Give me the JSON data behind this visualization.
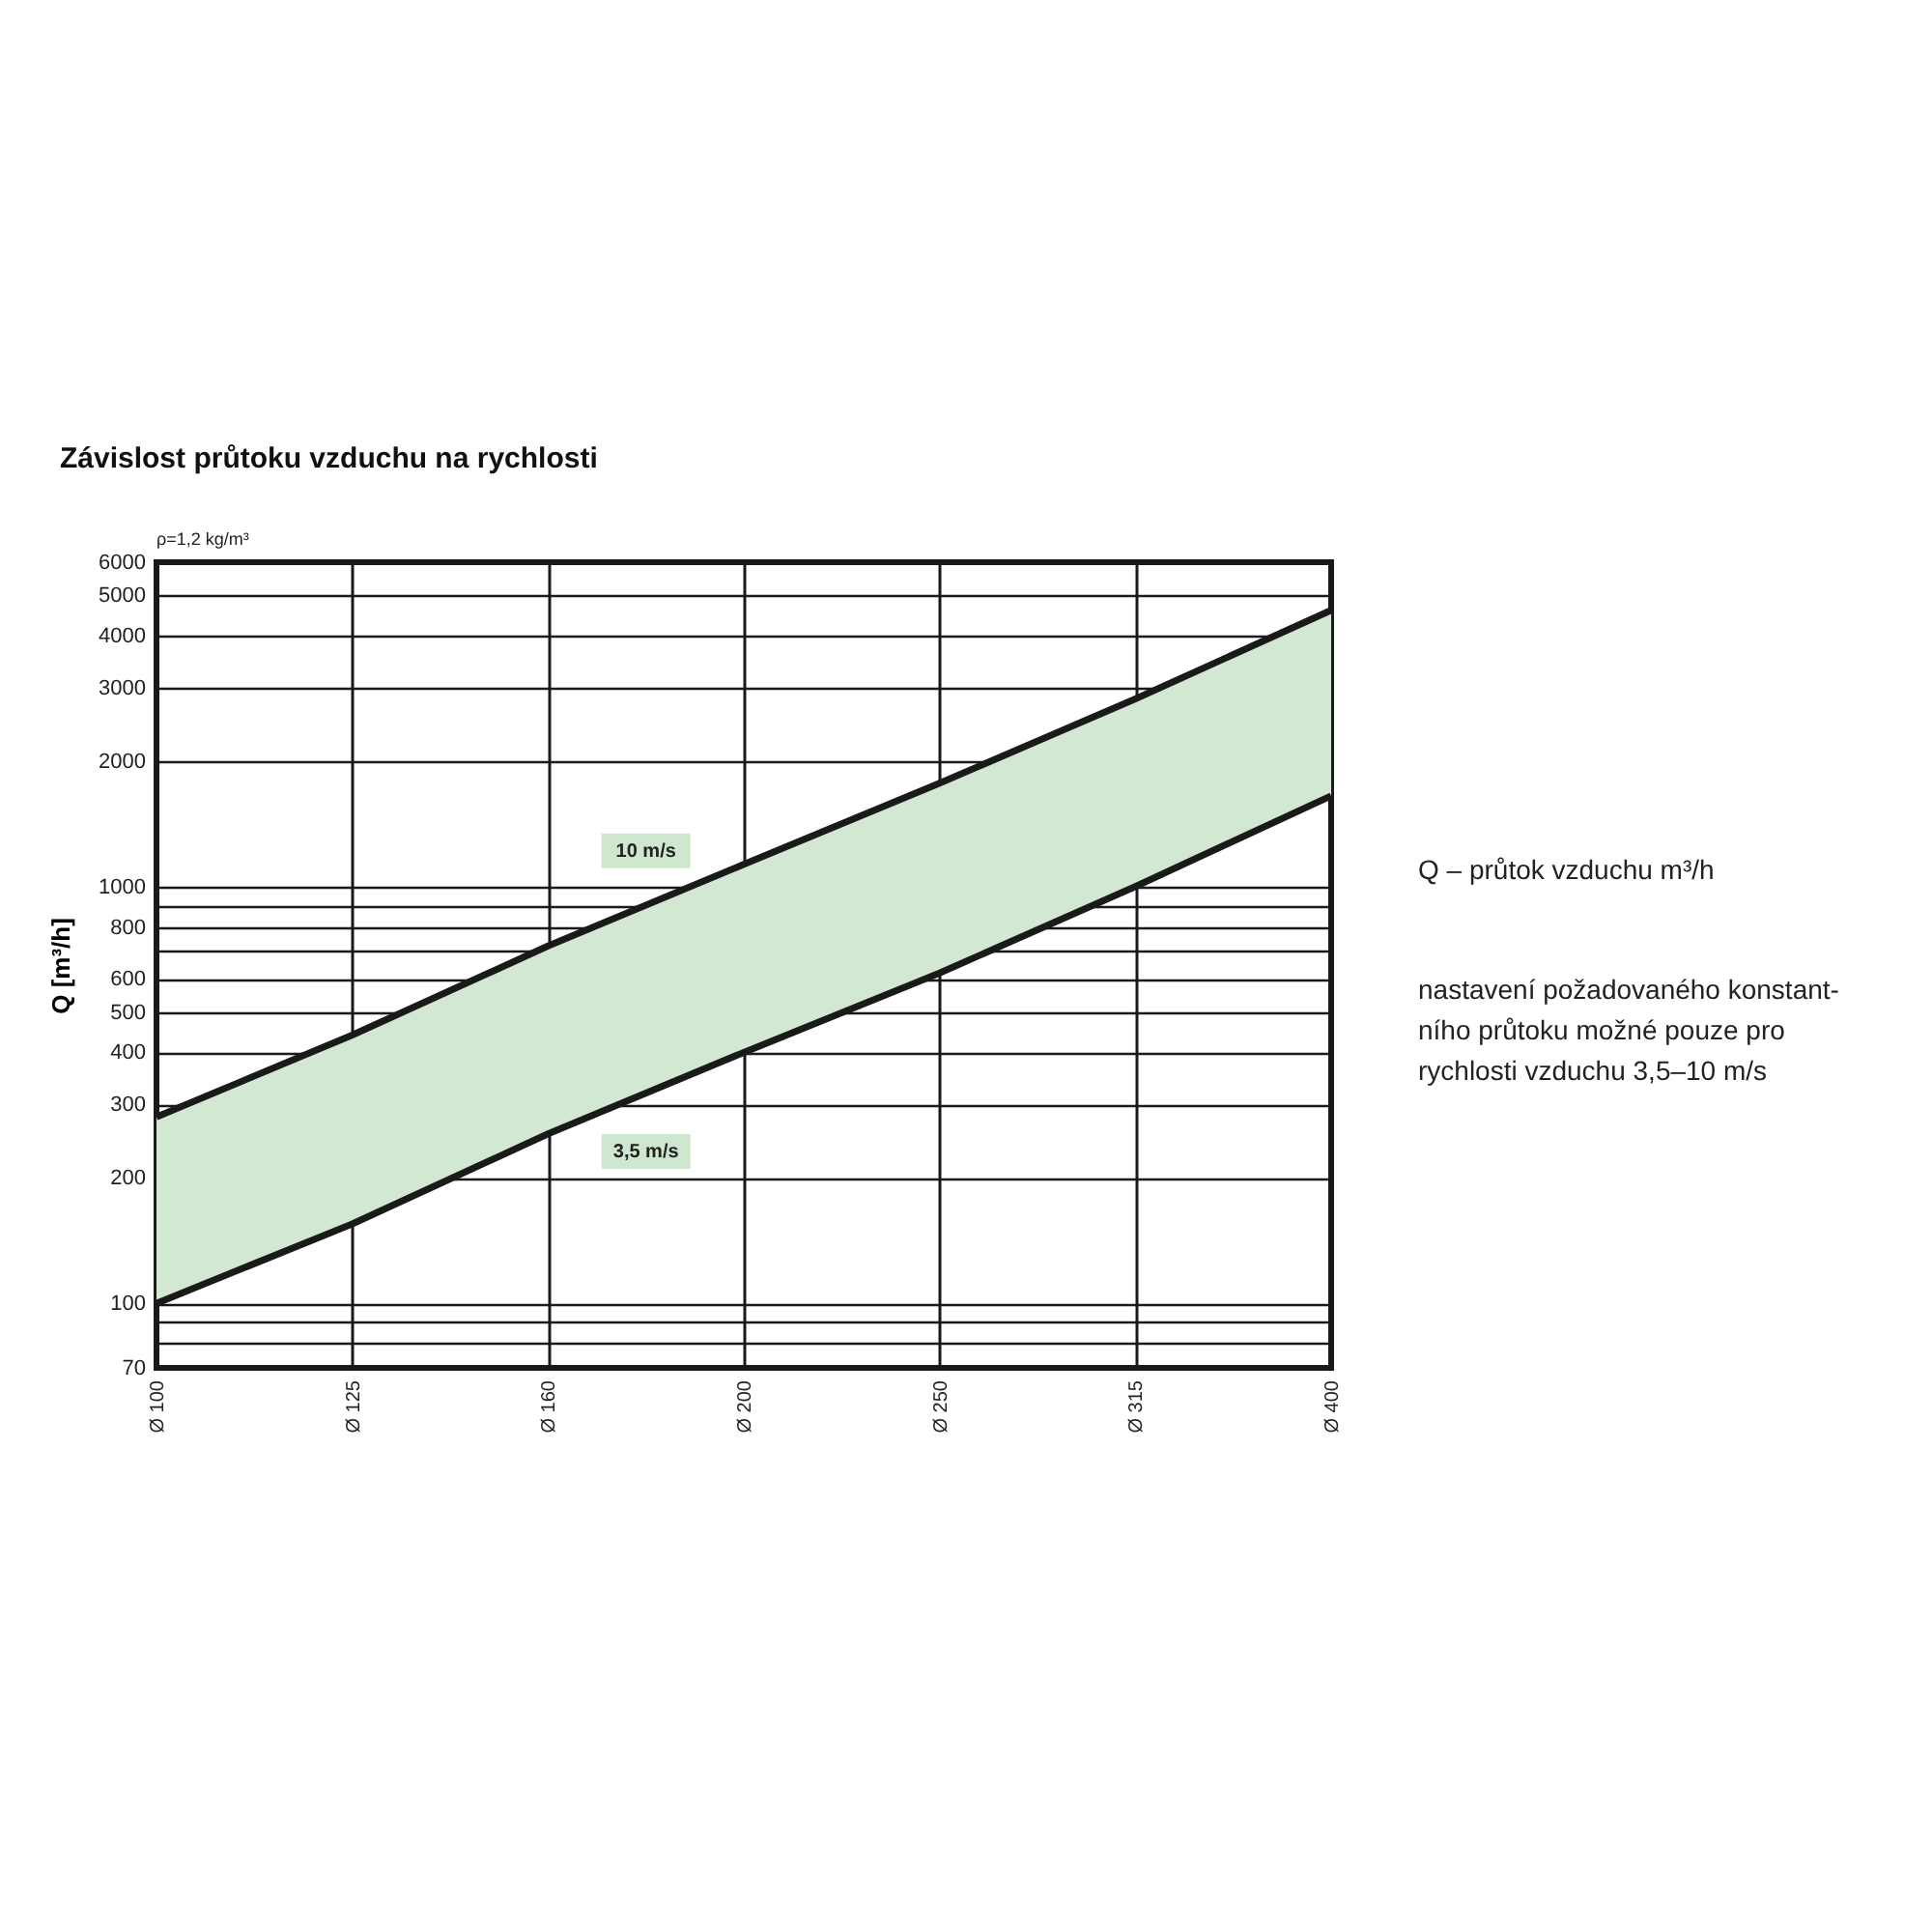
{
  "chart_data": {
    "type": "line",
    "title": "Závislost průtoku vzduchu na rychlosti",
    "ylabel": "Q [m³/h]",
    "categories": [
      "Ø 100",
      "Ø 125",
      "Ø 160",
      "Ø 200",
      "Ø 250",
      "Ø 315",
      "Ø 400"
    ],
    "series": [
      {
        "name": "10 m/s",
        "color": "#1a1a1a",
        "values": [
          280,
          440,
          720,
          1130,
          1770,
          2820,
          4600
        ],
        "lower": [
          100,
          155,
          255,
          400,
          620,
          1000,
          1650
        ],
        "upper": [
          280,
          440,
          720,
          1130,
          1770,
          2820,
          4600
        ]
      },
      {
        "name": "3,5 m/s",
        "color": "#1a1a1a",
        "values": [
          100,
          155,
          255,
          400,
          620,
          1000,
          1650
        ]
      }
    ],
    "log": "y",
    "ylim": [
      70,
      6000
    ],
    "yticks": [
      70,
      {
        "value": 80,
        "label": null
      },
      {
        "value": 90,
        "label": null
      },
      100,
      200,
      300,
      400,
      500,
      600,
      {
        "value": 700,
        "label": null
      },
      800,
      {
        "value": 900,
        "label": null
      },
      1000,
      2000,
      3000,
      4000,
      5000,
      6000
    ],
    "grid": true,
    "marker": "none",
    "line_style": "solid",
    "annotations": [
      "ρ=1,2 kg/m³",
      "Q – průtok vzduchu m³/h",
      "nastavení požadovaného konstant-\nního průtoku možné pouze pro\nrychlosti vzduchu 3,5–10 m/s"
    ]
  }
}
